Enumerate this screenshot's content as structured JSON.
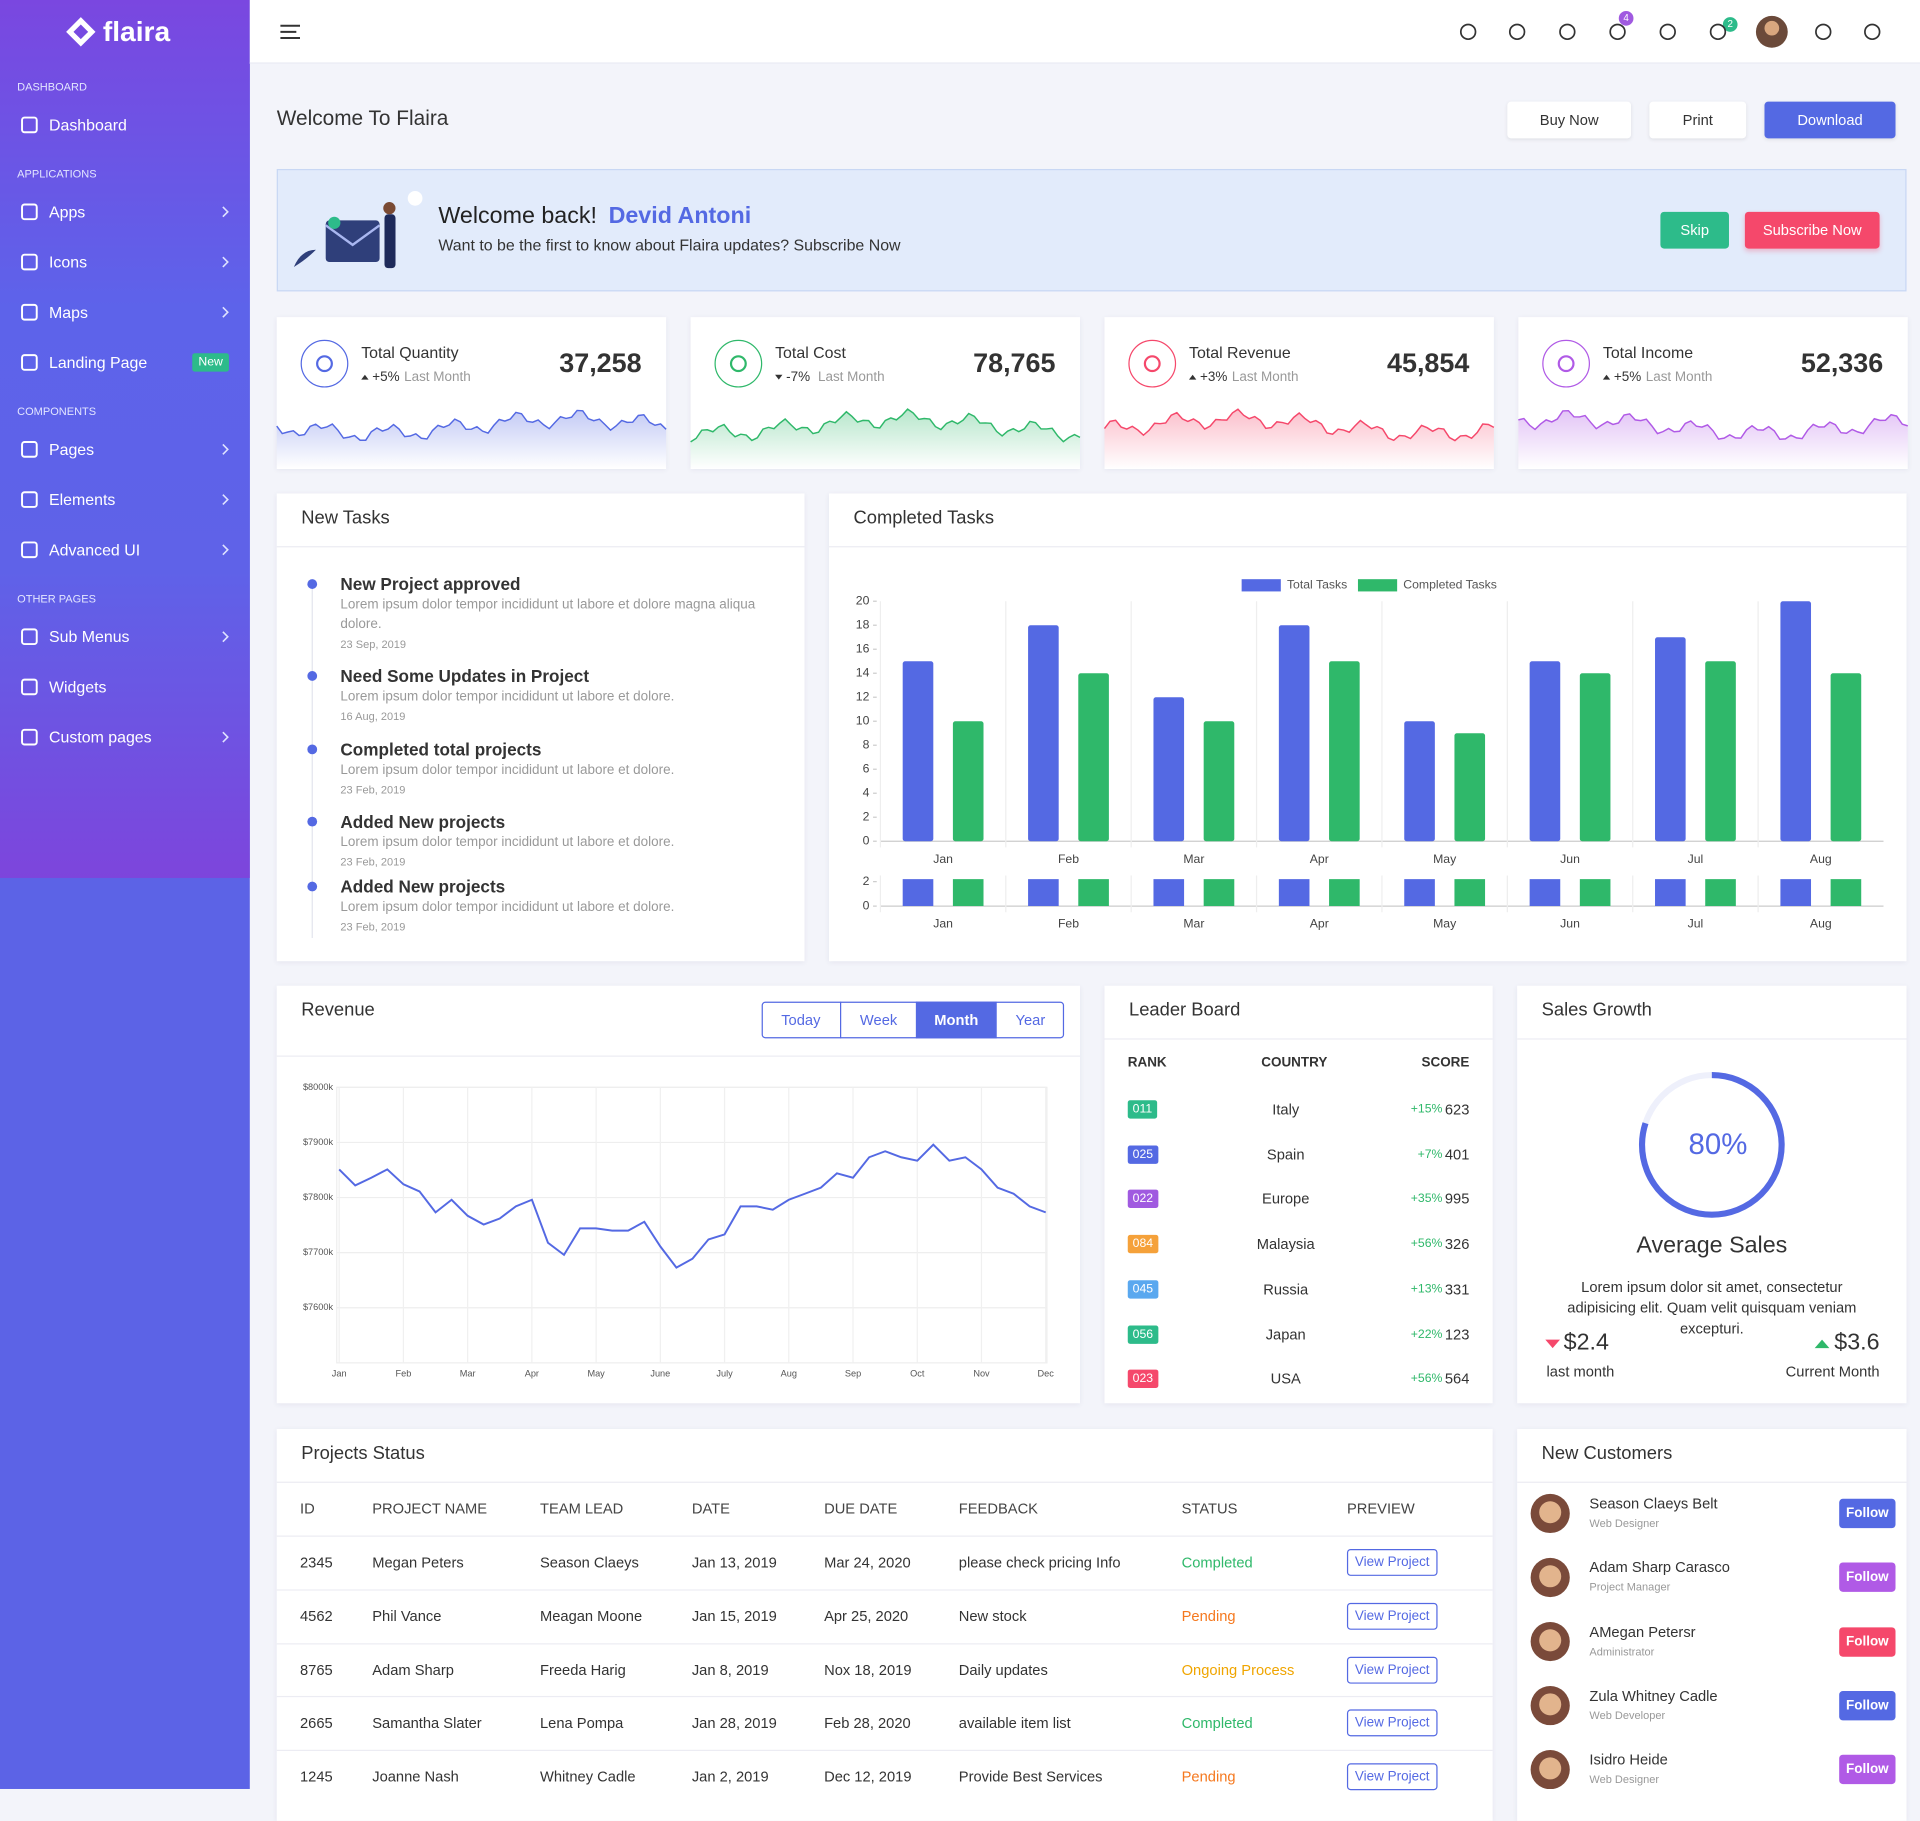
{
  "sidebar": {
    "brand": "flaira",
    "sections": [
      {
        "title": "DASHBOARD",
        "items": [
          {
            "label": "Dashboard",
            "arrow": false
          }
        ]
      },
      {
        "title": "APPLICATIONS",
        "items": [
          {
            "label": "Apps",
            "arrow": true
          },
          {
            "label": "Icons",
            "arrow": true
          },
          {
            "label": "Maps",
            "arrow": true
          },
          {
            "label": "Landing Page",
            "arrow": false,
            "badge": "New"
          }
        ]
      },
      {
        "title": "COMPONENTS",
        "items": [
          {
            "label": "Pages",
            "arrow": true
          },
          {
            "label": "Elements",
            "arrow": true
          },
          {
            "label": "Advanced UI",
            "arrow": true
          }
        ]
      },
      {
        "title": "OTHER PAGES",
        "items": [
          {
            "label": "Sub Menus",
            "arrow": true
          },
          {
            "label": "Widgets",
            "arrow": false
          },
          {
            "label": "Custom pages",
            "arrow": true
          }
        ]
      }
    ]
  },
  "header": {
    "cart_count": 4,
    "notification_count": 2
  },
  "page": {
    "title": "Welcome To Flaira",
    "buttons": [
      "Buy Now",
      "Print",
      "Download"
    ]
  },
  "welcome": {
    "greeting": "Welcome back!",
    "name": "Devid Antoni",
    "text": "Want to be the first to know about Flaira updates? Subscribe Now",
    "buttons": [
      "Skip",
      "Subscribe Now"
    ]
  },
  "stats": [
    {
      "title": "Total Quantity",
      "change": "+5%",
      "period": "Last Month",
      "value": "37,258",
      "trend": "up",
      "color": "#5469e3"
    },
    {
      "title": "Total Cost",
      "change": "-7%",
      "period": "Last Month",
      "value": "78,765",
      "trend": "down",
      "color": "#2fb86a"
    },
    {
      "title": "Total Revenue",
      "change": "+3%",
      "period": "Last Month",
      "value": "45,854",
      "trend": "up",
      "color": "#f5486b"
    },
    {
      "title": "Total Income",
      "change": "+5%",
      "period": "Last Month",
      "value": "52,336",
      "trend": "up",
      "color": "#b05ae6"
    }
  ],
  "new_tasks": {
    "title": "New Tasks",
    "items": [
      {
        "title": "New Project approved",
        "text": "Lorem ipsum dolor tempor incididunt ut labore et dolore magna aliqua dolore.",
        "date": "23 Sep, 2019"
      },
      {
        "title": "Need Some Updates in Project",
        "text": "Lorem ipsum dolor tempor incididunt ut labore et dolore.",
        "date": "16 Aug, 2019"
      },
      {
        "title": "Completed total projects",
        "text": "Lorem ipsum dolor tempor incididunt ut labore et dolore.",
        "date": "23 Feb, 2019"
      },
      {
        "title": "Added New projects",
        "text": "Lorem ipsum dolor tempor incididunt ut labore et dolore.",
        "date": "23 Feb, 2019"
      },
      {
        "title": "Added New projects",
        "text": "Lorem ipsum dolor tempor incididunt ut labore et dolore.",
        "date": "23 Feb, 2019"
      }
    ]
  },
  "completed_tasks": {
    "title": "Completed Tasks",
    "chart_data": {
      "type": "bar",
      "categories": [
        "Jan",
        "Feb",
        "Mar",
        "Apr",
        "May",
        "Jun",
        "Jul",
        "Aug"
      ],
      "series": [
        {
          "name": "Total Tasks",
          "color": "#5469e3",
          "values": [
            15,
            18,
            12,
            18,
            10,
            15,
            17,
            20
          ]
        },
        {
          "name": "Completed Tasks",
          "color": "#2fb86a",
          "values": [
            10,
            14,
            10,
            15,
            9,
            14,
            15,
            14
          ]
        }
      ],
      "ylim": [
        0,
        20
      ],
      "yticks": [
        0,
        2,
        4,
        6,
        8,
        10,
        12,
        14,
        16,
        18,
        20
      ],
      "grid": true,
      "legend": "top",
      "navigator": {
        "ylim": [
          0,
          2
        ],
        "yticks": [
          0,
          2
        ]
      }
    }
  },
  "revenue": {
    "title": "Revenue",
    "tabs": [
      "Today",
      "Week",
      "Month",
      "Year"
    ],
    "active_tab": 2,
    "chart_data": {
      "type": "line",
      "color": "#5469e3",
      "x": [
        0,
        0.25,
        0.5,
        0.75,
        1,
        1.25,
        1.5,
        1.75,
        2,
        2.25,
        2.5,
        2.75,
        3,
        3.25,
        3.5,
        3.75,
        4,
        4.25,
        4.5,
        4.75,
        5,
        5.25,
        5.5,
        5.75,
        6,
        6.25,
        6.5,
        6.75,
        7,
        7.25,
        7.5,
        7.75,
        8,
        8.25,
        8.5,
        8.75,
        9,
        9.25,
        9.5,
        9.75,
        10,
        10.25,
        10.5,
        10.75,
        11
      ],
      "values": [
        7851,
        7822,
        7836,
        7851,
        7824,
        7811,
        7773,
        7796,
        7767,
        7751,
        7762,
        7784,
        7796,
        7718,
        7696,
        7744,
        7744,
        7740,
        7740,
        7756,
        7711,
        7673,
        7689,
        7724,
        7733,
        7784,
        7784,
        7778,
        7796,
        7807,
        7818,
        7844,
        7836,
        7873,
        7884,
        7873,
        7867,
        7896,
        7867,
        7873,
        7851,
        7818,
        7807,
        7784,
        7773
      ],
      "xlim": [
        0,
        11
      ],
      "xticks": [
        {
          "value": 0,
          "label": "Jan"
        },
        {
          "value": 1,
          "label": "Feb"
        },
        {
          "value": 2,
          "label": "Mar"
        },
        {
          "value": 3,
          "label": "Apr"
        },
        {
          "value": 4,
          "label": "May"
        },
        {
          "value": 5,
          "label": "June"
        },
        {
          "value": 6,
          "label": "July"
        },
        {
          "value": 7,
          "label": "Aug"
        },
        {
          "value": 8,
          "label": "Sep"
        },
        {
          "value": 9,
          "label": "Oct"
        },
        {
          "value": 10,
          "label": "Nov"
        },
        {
          "value": 11,
          "label": "Dec"
        }
      ],
      "ylim": [
        7500,
        8000
      ],
      "yticks": [
        {
          "value": 7600,
          "label": "$7600k"
        },
        {
          "value": 7700,
          "label": "$7700k"
        },
        {
          "value": 7800,
          "label": "$7800k"
        },
        {
          "value": 7900,
          "label": "$7900k"
        },
        {
          "value": 8000,
          "label": "$8000k"
        }
      ],
      "grid": true
    }
  },
  "leader_board": {
    "title": "Leader Board",
    "columns": [
      "RANK",
      "COUNTRY",
      "SCORE"
    ],
    "rows": [
      {
        "rank": "011",
        "country": "Italy",
        "change": "+15%",
        "score": 623,
        "color": "#2dbb8a"
      },
      {
        "rank": "025",
        "country": "Spain",
        "change": "+7%",
        "score": 401,
        "color": "#5469e3"
      },
      {
        "rank": "022",
        "country": "Europe",
        "change": "+35%",
        "score": 995,
        "color": "#a05ae0"
      },
      {
        "rank": "084",
        "country": "Malaysia",
        "change": "+56%",
        "score": 326,
        "color": "#f5a13a"
      },
      {
        "rank": "045",
        "country": "Russia",
        "change": "+13%",
        "score": 331,
        "color": "#5aa8ef"
      },
      {
        "rank": "056",
        "country": "Japan",
        "change": "+22%",
        "score": 123,
        "color": "#2dbb8a"
      },
      {
        "rank": "023",
        "country": "USA",
        "change": "+56%",
        "score": 564,
        "color": "#f5486b"
      }
    ]
  },
  "sales_growth": {
    "title": "Sales Growth",
    "chart_data": {
      "type": "ring",
      "values": [
        80
      ],
      "value_labels": [
        "80%"
      ],
      "ylim": [
        0,
        100
      ],
      "color": "#5469e3"
    },
    "label": "Average Sales",
    "text": "Lorem ipsum dolor sit amet, consectetur adipisicing elit. Quam velit quisquam veniam excepturi.",
    "last": {
      "value": "$2.4",
      "label": "last month"
    },
    "current": {
      "value": "$3.6",
      "label": "Current Month"
    }
  },
  "projects": {
    "title": "Projects Status",
    "columns": [
      "ID",
      "PROJECT NAME",
      "TEAM LEAD",
      "DATE",
      "DUE DATE",
      "FEEDBACK",
      "STATUS",
      "PREVIEW"
    ],
    "action": "View Project",
    "rows": [
      {
        "cells": [
          "2345",
          "Megan Peters",
          "Season Claeys",
          "Jan 13, 2019",
          "Mar 24, 2020",
          "please check pricing Info",
          "Completed"
        ],
        "status_color": "#2fb86a"
      },
      {
        "cells": [
          "4562",
          "Phil Vance",
          "Meagan Moone",
          "Jan 15, 2019",
          "Apr 25, 2020",
          "New stock",
          "Pending"
        ],
        "status_color": "#f5781e"
      },
      {
        "cells": [
          "8765",
          "Adam Sharp",
          "Freeda Harig",
          "Jan 8, 2019",
          "Nox 18, 2019",
          "Daily updates",
          "Ongoing Process"
        ],
        "status_color": "#f0a500"
      },
      {
        "cells": [
          "2665",
          "Samantha Slater",
          "Lena Pompa",
          "Jan 28, 2019",
          "Feb 28, 2020",
          "available item list",
          "Completed"
        ],
        "status_color": "#2fb86a"
      },
      {
        "cells": [
          "1245",
          "Joanne Nash",
          "Whitney Cadle",
          "Jan 2, 2019",
          "Dec 12, 2019",
          "Provide Best Services",
          "Pending"
        ],
        "status_color": "#f5781e"
      }
    ]
  },
  "customers": {
    "title": "New Customers",
    "action": "Follow",
    "items": [
      {
        "name": "Season Claeys Belt",
        "role": "Web Designer",
        "color": "#5469e3"
      },
      {
        "name": "Adam Sharp Carasco",
        "role": "Project Manager",
        "color": "#b05ae6"
      },
      {
        "name": "AMegan Petersr",
        "role": "Administrator",
        "color": "#f5486b"
      },
      {
        "name": "Zula Whitney Cadle",
        "role": "Web Developer",
        "color": "#5469e3"
      },
      {
        "name": "Isidro Heide",
        "role": "Web Designer",
        "color": "#b05ae6"
      }
    ]
  }
}
